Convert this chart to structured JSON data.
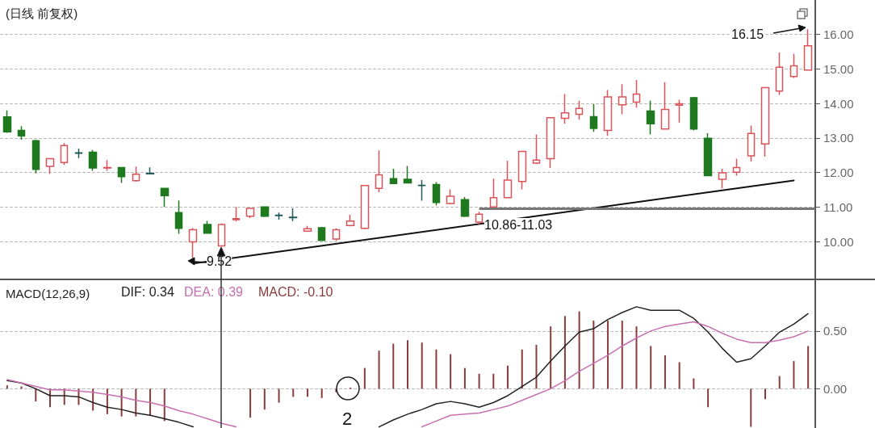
{
  "chart_data": [
    {
      "type": "candlestick",
      "title": "(日线 前复权)",
      "categories": [
        null,
        null,
        null,
        null,
        null,
        null,
        null,
        null,
        null,
        null,
        null,
        null,
        null,
        null,
        null,
        null,
        null,
        null,
        null,
        null,
        null,
        null,
        null,
        null,
        null,
        null,
        null,
        null,
        null,
        null,
        null,
        null,
        null,
        null,
        null,
        null,
        null,
        null,
        null,
        null,
        null,
        null,
        null,
        null,
        null,
        null,
        null,
        null,
        null,
        null,
        null,
        null,
        null,
        null,
        null,
        null,
        null
      ],
      "ohlc": [
        [
          13.61,
          13.8,
          13.15,
          13.18
        ],
        [
          13.22,
          13.34,
          12.95,
          13.06
        ],
        [
          12.92,
          12.95,
          11.97,
          12.09
        ],
        [
          12.18,
          12.42,
          11.96,
          12.4
        ],
        [
          12.29,
          12.85,
          12.22,
          12.78
        ],
        [
          12.57,
          12.69,
          12.42,
          12.56
        ],
        [
          12.59,
          12.65,
          12.05,
          12.13
        ],
        [
          12.13,
          12.36,
          12.05,
          12.14
        ],
        [
          12.14,
          12.16,
          11.7,
          11.88
        ],
        [
          11.76,
          12.17,
          11.74,
          11.95
        ],
        [
          11.97,
          12.15,
          11.95,
          11.96
        ],
        [
          11.54,
          11.56,
          11.0,
          11.33
        ],
        [
          10.84,
          11.19,
          10.22,
          10.38
        ],
        [
          9.99,
          10.39,
          9.52,
          10.34
        ],
        [
          10.49,
          10.6,
          10.22,
          10.24
        ],
        [
          9.87,
          10.52,
          9.85,
          10.49
        ],
        [
          10.63,
          11.0,
          10.58,
          10.66
        ],
        [
          10.73,
          10.98,
          10.68,
          10.96
        ],
        [
          11.0,
          11.02,
          10.71,
          10.73
        ],
        [
          10.76,
          10.84,
          10.63,
          10.75
        ],
        [
          10.7,
          10.96,
          10.59,
          10.69
        ],
        [
          10.3,
          10.45,
          10.28,
          10.37
        ],
        [
          10.4,
          10.42,
          10.02,
          10.03
        ],
        [
          10.07,
          10.38,
          10.02,
          10.34
        ],
        [
          10.46,
          10.77,
          10.44,
          10.59
        ],
        [
          10.38,
          11.64,
          10.36,
          11.62
        ],
        [
          11.54,
          12.64,
          11.43,
          11.93
        ],
        [
          11.82,
          12.11,
          11.66,
          11.68
        ],
        [
          11.8,
          12.19,
          11.68,
          11.7
        ],
        [
          11.63,
          11.78,
          11.18,
          11.62
        ],
        [
          11.65,
          11.72,
          11.05,
          11.13
        ],
        [
          11.1,
          11.51,
          11.08,
          11.31
        ],
        [
          11.21,
          11.29,
          10.71,
          10.73
        ],
        [
          10.56,
          10.86,
          10.5,
          10.79
        ],
        [
          11.0,
          11.82,
          10.98,
          11.27
        ],
        [
          11.27,
          12.34,
          11.25,
          11.78
        ],
        [
          11.74,
          12.63,
          11.51,
          12.61
        ],
        [
          12.27,
          13.1,
          12.25,
          12.36
        ],
        [
          12.4,
          13.6,
          12.13,
          13.59
        ],
        [
          13.57,
          14.27,
          13.41,
          13.73
        ],
        [
          13.69,
          14.08,
          13.53,
          13.86
        ],
        [
          13.62,
          13.98,
          13.18,
          13.28
        ],
        [
          13.22,
          14.39,
          13.06,
          14.19
        ],
        [
          13.96,
          14.56,
          13.69,
          14.19
        ],
        [
          14.04,
          14.68,
          13.88,
          14.27
        ],
        [
          13.78,
          14.08,
          13.1,
          13.41
        ],
        [
          13.26,
          14.62,
          13.24,
          13.83
        ],
        [
          13.95,
          14.11,
          13.45,
          13.99
        ],
        [
          14.17,
          14.19,
          13.22,
          13.26
        ],
        [
          12.99,
          13.14,
          11.91,
          11.91
        ],
        [
          11.8,
          12.11,
          11.54,
          11.99
        ],
        [
          12.01,
          12.4,
          11.91,
          12.14
        ],
        [
          12.48,
          13.36,
          12.32,
          13.13
        ],
        [
          12.83,
          14.47,
          12.46,
          14.46
        ],
        [
          14.36,
          15.48,
          14.25,
          15.05
        ],
        [
          14.78,
          15.44,
          14.74,
          15.09
        ],
        [
          14.97,
          16.15,
          14.95,
          15.67
        ]
      ],
      "colors": [
        "#1f7a1f",
        "#1f7a1f",
        "#1f7a1f",
        "#d9545a",
        "#d9545a",
        "#1f5a5a",
        "#1f7a1f",
        "#d9545a",
        "#1f7a1f",
        "#d9545a",
        "#1f5a5a",
        "#1f7a1f",
        "#1f7a1f",
        "#d9545a",
        "#1f7a1f",
        "#d9545a",
        "#d9545a",
        "#d9545a",
        "#1f7a1f",
        "#1f5a5a",
        "#1f5a5a",
        "#d9545a",
        "#1f7a1f",
        "#d9545a",
        "#d9545a",
        "#d9545a",
        "#d9545a",
        "#1f7a1f",
        "#1f7a1f",
        "#1f5a5a",
        "#1f7a1f",
        "#d9545a",
        "#1f7a1f",
        "#d9545a",
        "#d9545a",
        "#d9545a",
        "#d9545a",
        "#d9545a",
        "#d9545a",
        "#d9545a",
        "#d9545a",
        "#1f7a1f",
        "#d9545a",
        "#d9545a",
        "#d9545a",
        "#1f7a1f",
        "#d9545a",
        "#d9545a",
        "#1f7a1f",
        "#1f7a1f",
        "#d9545a",
        "#d9545a",
        "#d9545a",
        "#d9545a",
        "#d9545a",
        "#d9545a",
        "#d9545a"
      ],
      "series": [
        {
          "type": "line",
          "color": "#111111",
          "values": [
            null,
            null,
            null,
            null,
            null,
            null,
            null,
            null,
            null,
            null,
            null,
            null,
            null,
            9.36,
            null,
            null,
            null,
            null,
            null,
            null,
            null,
            null,
            null,
            null,
            null,
            null,
            null,
            null,
            null,
            null,
            null,
            null,
            null,
            null,
            null,
            null,
            null,
            null,
            null,
            null,
            null,
            null,
            null,
            null,
            null,
            null,
            null,
            null,
            null,
            null,
            null,
            null,
            null,
            null,
            null,
            11.77,
            null
          ]
        }
      ],
      "ref_lines": [
        {
          "axis": "y",
          "value": 10.95,
          "color": "#777777"
        }
      ],
      "annotations": [
        "16.15",
        "9.52",
        "10.86-11.03"
      ],
      "ylim": [
        8.9,
        17.0
      ],
      "yticks": [
        {
          "value": 10,
          "label": "10.00"
        },
        {
          "value": 11,
          "label": "11.00"
        },
        {
          "value": 12,
          "label": "12.00"
        },
        {
          "value": 13,
          "label": "13.00"
        },
        {
          "value": 14,
          "label": "14.00"
        },
        {
          "value": 15,
          "label": "15.00"
        },
        {
          "value": 16,
          "label": "16.00"
        }
      ],
      "grid": "y",
      "tick_labels": "y"
    },
    {
      "type": "line",
      "title": "MACD(12,26,9)",
      "categories": [
        null,
        null,
        null,
        null,
        null,
        null,
        null,
        null,
        null,
        null,
        null,
        null,
        null,
        null,
        null,
        null,
        null,
        null,
        null,
        null,
        null,
        null,
        null,
        null,
        null,
        null,
        null,
        null,
        null,
        null,
        null,
        null,
        null,
        null,
        null,
        null,
        null,
        null,
        null,
        null,
        null,
        null,
        null,
        null,
        null,
        null,
        null,
        null,
        null,
        null,
        null,
        null,
        null,
        null,
        null,
        null,
        null
      ],
      "series": [
        {
          "type": "line",
          "color": "#222222",
          "values": [
            0.07,
            0.05,
            0.0,
            -0.06,
            -0.06,
            -0.07,
            -0.12,
            -0.16,
            -0.18,
            -0.21,
            -0.23,
            -0.26,
            -0.29,
            -0.33,
            null,
            null,
            null,
            null,
            null,
            null,
            null,
            null,
            null,
            null,
            null,
            null,
            -0.33,
            -0.27,
            -0.22,
            -0.18,
            -0.13,
            -0.11,
            -0.13,
            -0.16,
            -0.12,
            -0.06,
            0.02,
            0.1,
            0.24,
            0.37,
            0.49,
            0.52,
            0.6,
            0.66,
            0.71,
            0.68,
            0.68,
            0.68,
            0.61,
            0.49,
            0.35,
            0.23,
            0.26,
            0.37,
            0.49,
            0.56,
            0.65
          ]
        },
        {
          "type": "line",
          "color": "#c86fb0",
          "values": [
            0.08,
            0.05,
            0.02,
            -0.01,
            -0.01,
            -0.02,
            -0.03,
            -0.05,
            -0.07,
            -0.1,
            -0.12,
            -0.15,
            -0.19,
            -0.22,
            -0.26,
            -0.3,
            -0.33,
            null,
            null,
            null,
            null,
            null,
            null,
            null,
            null,
            null,
            null,
            null,
            null,
            -0.33,
            -0.28,
            -0.23,
            -0.22,
            -0.21,
            -0.18,
            -0.15,
            -0.1,
            -0.05,
            0.0,
            0.07,
            0.15,
            0.22,
            0.29,
            0.37,
            0.44,
            0.5,
            0.54,
            0.56,
            0.58,
            0.54,
            0.48,
            0.43,
            0.4,
            0.4,
            0.42,
            0.45,
            0.5
          ]
        },
        {
          "type": "bar",
          "color": "#8a3c3c",
          "values": [
            0.03,
            0.02,
            -0.11,
            -0.16,
            -0.14,
            -0.14,
            -0.19,
            -0.22,
            -0.24,
            -0.24,
            -0.23,
            -0.28,
            null,
            null,
            null,
            null,
            null,
            -0.25,
            -0.18,
            -0.12,
            -0.07,
            -0.07,
            -0.08,
            -0.03,
            0.01,
            0.18,
            0.33,
            0.39,
            0.42,
            0.4,
            0.34,
            0.3,
            0.18,
            0.13,
            0.13,
            0.2,
            0.34,
            0.38,
            0.54,
            0.63,
            0.67,
            0.59,
            0.59,
            0.59,
            0.54,
            0.37,
            0.29,
            0.23,
            0.09,
            -0.16,
            null,
            null,
            -0.33,
            -0.09,
            0.11,
            0.24,
            0.37
          ]
        }
      ],
      "annotations": [
        "DIF: 0.34",
        "DEA: 0.39",
        "MACD: -0.10",
        "2"
      ],
      "ylim": [
        -0.34,
        0.94
      ],
      "yticks": [
        {
          "value": 0,
          "label": "0.00"
        },
        {
          "value": 0.5,
          "label": "0.50"
        }
      ],
      "grid": "y",
      "tick_labels": "y"
    }
  ]
}
